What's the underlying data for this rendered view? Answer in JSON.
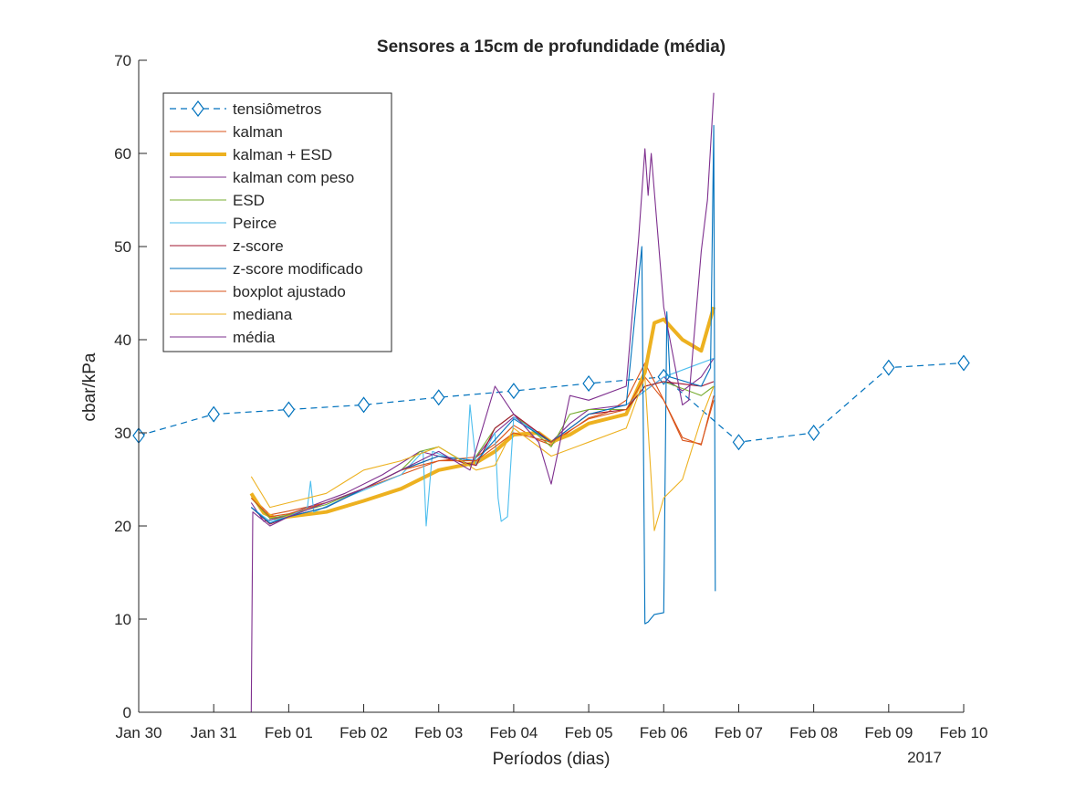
{
  "chart_data": {
    "type": "line",
    "title": "Sensores a 15cm de profundidade (média)",
    "xlabel": "Períodos (dias)",
    "ylabel": "cbar/kPa",
    "year_label": "2017",
    "xlim": [
      "2017-01-30",
      "2017-02-10"
    ],
    "ylim": [
      0,
      70
    ],
    "x_ticks": [
      "Jan 30",
      "Jan 31",
      "Feb 01",
      "Feb 02",
      "Feb 03",
      "Feb 04",
      "Feb 05",
      "Feb 06",
      "Feb 07",
      "Feb 08",
      "Feb 09",
      "Feb 10"
    ],
    "y_ticks": [
      "0",
      "10",
      "20",
      "30",
      "40",
      "50",
      "60",
      "70"
    ],
    "grid": false,
    "legend_position": "top-left",
    "series": [
      {
        "name": "tensiômetros",
        "color": "#0072BD",
        "style": "dashed",
        "marker": "diamond",
        "width": 1.2,
        "x": [
          "2017-01-30",
          "2017-01-31",
          "2017-02-01",
          "2017-02-02",
          "2017-02-03",
          "2017-02-04",
          "2017-02-05",
          "2017-02-06",
          "2017-02-07",
          "2017-02-08",
          "2017-02-09",
          "2017-02-10"
        ],
        "y": [
          29.7,
          32.0,
          32.5,
          33.0,
          33.8,
          34.5,
          35.3,
          36.0,
          29.0,
          30.0,
          37.0,
          37.5
        ]
      },
      {
        "name": "kalman",
        "color": "#D95319",
        "style": "solid",
        "width": 1.1,
        "x": [
          "2017-01-31T12:00",
          "2017-01-31T18:00",
          "2017-02-01T00:00",
          "2017-02-01T12:00",
          "2017-02-02T00:00",
          "2017-02-02T12:00",
          "2017-02-03T00:00",
          "2017-02-03T12:00",
          "2017-02-03T18:00",
          "2017-02-04T00:00",
          "2017-02-04T08:00",
          "2017-02-04T12:00",
          "2017-02-04T18:00",
          "2017-02-05T00:00",
          "2017-02-05T06:00",
          "2017-02-05T12:00",
          "2017-02-05T18:00",
          "2017-02-06T00:00",
          "2017-02-06T06:00",
          "2017-02-06T12:00",
          "2017-02-06T16:00"
        ],
        "y": [
          23.2,
          21.2,
          21.6,
          22.5,
          24.0,
          25.5,
          27.0,
          27.4,
          28.8,
          30.8,
          29.2,
          28.7,
          30.2,
          31.6,
          32.2,
          33.5,
          37.5,
          33.5,
          29.2,
          28.8,
          33.5
        ]
      },
      {
        "name": "kalman + ESD",
        "color": "#EDB120",
        "style": "solid",
        "width": 4,
        "x": [
          "2017-01-31T12:00",
          "2017-01-31T16:00",
          "2017-01-31T20:00",
          "2017-02-01T00:00",
          "2017-02-01T12:00",
          "2017-02-02T00:00",
          "2017-02-02T12:00",
          "2017-02-03T00:00",
          "2017-02-03T12:00",
          "2017-02-03T18:00",
          "2017-02-04T00:00",
          "2017-02-04T08:00",
          "2017-02-04T12:00",
          "2017-02-04T18:00",
          "2017-02-05T00:00",
          "2017-02-05T12:00",
          "2017-02-05T18:00",
          "2017-02-05T21:00",
          "2017-02-06T00:00",
          "2017-02-06T06:00",
          "2017-02-06T12:00",
          "2017-02-06T16:00"
        ],
        "y": [
          23.5,
          21.4,
          20.8,
          21.0,
          21.5,
          22.7,
          24.0,
          26.0,
          26.8,
          28.0,
          29.8,
          30.0,
          29.0,
          29.8,
          31.0,
          32.0,
          36.5,
          41.8,
          42.2,
          40.0,
          38.8,
          43.5
        ]
      },
      {
        "name": "kalman com peso",
        "color": "#7E2F8E",
        "style": "solid",
        "width": 1.1,
        "x": [
          "2017-01-31T12:00",
          "2017-01-31T16:00",
          "2017-01-31T22:00",
          "2017-02-01T06:00",
          "2017-02-01T18:00",
          "2017-02-02T06:00",
          "2017-02-02T18:00",
          "2017-02-03T06:00",
          "2017-02-03T10:00",
          "2017-02-03T18:00",
          "2017-02-04T00:00",
          "2017-02-04T08:00",
          "2017-02-04T12:00",
          "2017-02-04T18:00",
          "2017-02-05T00:00",
          "2017-02-05T12:00",
          "2017-02-05T18:00",
          "2017-02-06T00:00",
          "2017-02-06T06:00",
          "2017-02-06T12:00",
          "2017-02-06T16:00"
        ],
        "y": [
          22.5,
          20.5,
          21.0,
          22.0,
          23.5,
          25.5,
          28.0,
          27.0,
          26.5,
          30.0,
          31.7,
          30.0,
          29.0,
          31.0,
          32.5,
          33.0,
          34.5,
          36.0,
          34.5,
          36.0,
          38.0
        ]
      },
      {
        "name": "ESD",
        "color": "#77AC30",
        "style": "solid",
        "width": 1.1,
        "x": [
          "2017-01-31T12:00",
          "2017-01-31T18:00",
          "2017-02-01T00:00",
          "2017-02-01T12:00",
          "2017-02-02T00:00",
          "2017-02-02T12:00",
          "2017-02-02T18:00",
          "2017-02-03T00:00",
          "2017-02-03T10:00",
          "2017-02-03T18:00",
          "2017-02-04T00:00",
          "2017-02-04T12:00",
          "2017-02-04T18:00",
          "2017-02-05T00:00",
          "2017-02-05T12:00",
          "2017-02-05T18:00",
          "2017-02-06T00:00",
          "2017-02-06T12:00",
          "2017-02-06T16:00"
        ],
        "y": [
          23.0,
          20.8,
          21.2,
          22.3,
          24.0,
          26.0,
          28.0,
          28.5,
          26.5,
          30.5,
          32.0,
          28.5,
          32.0,
          32.5,
          32.5,
          35.0,
          35.5,
          34.0,
          35.0
        ]
      },
      {
        "name": "Peirce",
        "color": "#4DBEEE",
        "style": "solid",
        "width": 1.1,
        "x": [
          "2017-01-31T12:00",
          "2017-01-31T18:00",
          "2017-02-01T00:00",
          "2017-02-01T06:00",
          "2017-02-01T07:00",
          "2017-02-01T08:00",
          "2017-02-01T18:00",
          "2017-02-02T12:00",
          "2017-02-02T19:00",
          "2017-02-02T20:00",
          "2017-02-02T22:00",
          "2017-02-03T06:00",
          "2017-02-03T09:00",
          "2017-02-03T10:00",
          "2017-02-03T12:00",
          "2017-02-03T18:00",
          "2017-02-03T19:00",
          "2017-02-03T20:00",
          "2017-02-03T22:00",
          "2017-02-04T00:00",
          "2017-02-04T12:00",
          "2017-02-05T00:00",
          "2017-02-05T12:00",
          "2017-02-06T00:00",
          "2017-02-06T16:00"
        ],
        "y": [
          22.0,
          20.5,
          21.0,
          22.0,
          24.8,
          21.5,
          23.0,
          25.5,
          28.0,
          20.0,
          28.0,
          27.0,
          27.0,
          33.0,
          26.5,
          30.0,
          23.0,
          20.5,
          21.0,
          31.7,
          29.0,
          32.0,
          33.0,
          36.0,
          38.0
        ]
      },
      {
        "name": "z-score",
        "color": "#A2142F",
        "style": "solid",
        "width": 1.1,
        "x": [
          "2017-01-31T12:00",
          "2017-01-31T18:00",
          "2017-02-01T00:00",
          "2017-02-01T12:00",
          "2017-02-02T00:00",
          "2017-02-02T12:00",
          "2017-02-03T00:00",
          "2017-02-03T12:00",
          "2017-02-03T18:00",
          "2017-02-04T00:00",
          "2017-02-04T12:00",
          "2017-02-05T00:00",
          "2017-02-05T12:00",
          "2017-02-05T18:00",
          "2017-02-06T00:00",
          "2017-02-06T12:00",
          "2017-02-06T16:00"
        ],
        "y": [
          22.0,
          20.2,
          21.0,
          22.0,
          24.0,
          26.0,
          27.5,
          26.5,
          30.5,
          32.0,
          29.0,
          32.0,
          32.5,
          35.0,
          35.5,
          35.0,
          35.5
        ]
      },
      {
        "name": "z-score modificado",
        "color": "#0072BD",
        "style": "solid",
        "width": 1.1,
        "x": [
          "2017-01-31T12:00",
          "2017-01-31T18:00",
          "2017-02-01T00:00",
          "2017-02-01T12:00",
          "2017-02-02T00:00",
          "2017-02-02T12:00",
          "2017-02-03T00:00",
          "2017-02-03T12:00",
          "2017-02-04T00:00",
          "2017-02-04T12:00",
          "2017-02-05T00:00",
          "2017-02-05T12:00",
          "2017-02-05T17:00",
          "2017-02-05T18:00",
          "2017-02-05T19:00",
          "2017-02-05T21:00",
          "2017-02-06T00:00",
          "2017-02-06T01:00",
          "2017-02-06T02:00",
          "2017-02-06T12:00",
          "2017-02-06T15:00",
          "2017-02-06T16:00",
          "2017-02-06T16:30"
        ],
        "y": [
          22.0,
          20.3,
          21.0,
          22.0,
          24.0,
          26.0,
          27.5,
          27.0,
          31.5,
          29.0,
          32.0,
          33.0,
          50.0,
          9.5,
          9.7,
          10.5,
          10.7,
          43.0,
          36.0,
          35.0,
          37.0,
          63.0,
          13.0
        ]
      },
      {
        "name": "boxplot ajustado",
        "color": "#D95319",
        "style": "solid",
        "width": 1.1,
        "x": [
          "2017-01-31T12:00",
          "2017-01-31T18:00",
          "2017-02-01T00:00",
          "2017-02-01T12:00",
          "2017-02-02T00:00",
          "2017-02-02T12:00",
          "2017-02-03T00:00",
          "2017-02-03T12:00",
          "2017-02-04T00:00",
          "2017-02-04T12:00",
          "2017-02-05T00:00",
          "2017-02-05T12:00",
          "2017-02-05T18:00",
          "2017-02-06T00:00",
          "2017-02-06T06:00",
          "2017-02-06T12:00",
          "2017-02-06T16:00"
        ],
        "y": [
          23.0,
          21.0,
          21.3,
          22.5,
          24.0,
          26.0,
          27.0,
          27.0,
          30.0,
          29.0,
          31.5,
          32.5,
          36.0,
          33.5,
          29.5,
          28.7,
          34.0
        ]
      },
      {
        "name": "mediana",
        "color": "#EDB120",
        "style": "solid",
        "width": 1.1,
        "x": [
          "2017-01-31T12:00",
          "2017-01-31T18:00",
          "2017-02-01T00:00",
          "2017-02-01T12:00",
          "2017-02-02T00:00",
          "2017-02-02T12:00",
          "2017-02-03T00:00",
          "2017-02-03T12:00",
          "2017-02-03T18:00",
          "2017-02-04T00:00",
          "2017-02-04T12:00",
          "2017-02-05T00:00",
          "2017-02-05T12:00",
          "2017-02-05T18:00",
          "2017-02-05T21:00",
          "2017-02-06T00:00",
          "2017-02-06T06:00",
          "2017-02-06T12:00",
          "2017-02-06T16:00"
        ],
        "y": [
          25.3,
          22.0,
          22.5,
          23.5,
          26.0,
          27.0,
          28.5,
          26.0,
          26.5,
          30.5,
          27.5,
          29.0,
          30.5,
          36.0,
          19.5,
          23.0,
          25.0,
          31.5,
          35.0
        ]
      },
      {
        "name": "média",
        "color": "#7E2F8E",
        "style": "solid",
        "width": 1.1,
        "x": [
          "2017-01-31T12:00",
          "2017-01-31T12:30",
          "2017-01-31T18:00",
          "2017-02-01T00:00",
          "2017-02-01T12:00",
          "2017-02-02T00:00",
          "2017-02-02T12:00",
          "2017-02-03T00:00",
          "2017-02-03T10:00",
          "2017-02-03T18:00",
          "2017-02-04T00:00",
          "2017-02-04T08:00",
          "2017-02-04T12:00",
          "2017-02-04T18:00",
          "2017-02-05T00:00",
          "2017-02-05T12:00",
          "2017-02-05T16:00",
          "2017-02-05T18:00",
          "2017-02-05T19:00",
          "2017-02-05T20:00",
          "2017-02-06T00:00",
          "2017-02-06T06:00",
          "2017-02-06T08:00",
          "2017-02-06T12:00",
          "2017-02-06T14:00",
          "2017-02-06T16:00"
        ],
        "y": [
          0.0,
          21.5,
          20.0,
          21.0,
          22.5,
          24.0,
          26.0,
          28.0,
          26.0,
          35.0,
          32.0,
          29.0,
          24.5,
          34.0,
          33.5,
          35.0,
          51.0,
          60.5,
          55.5,
          60.0,
          43.5,
          33.0,
          33.5,
          49.5,
          55.0,
          66.5
        ]
      }
    ]
  }
}
